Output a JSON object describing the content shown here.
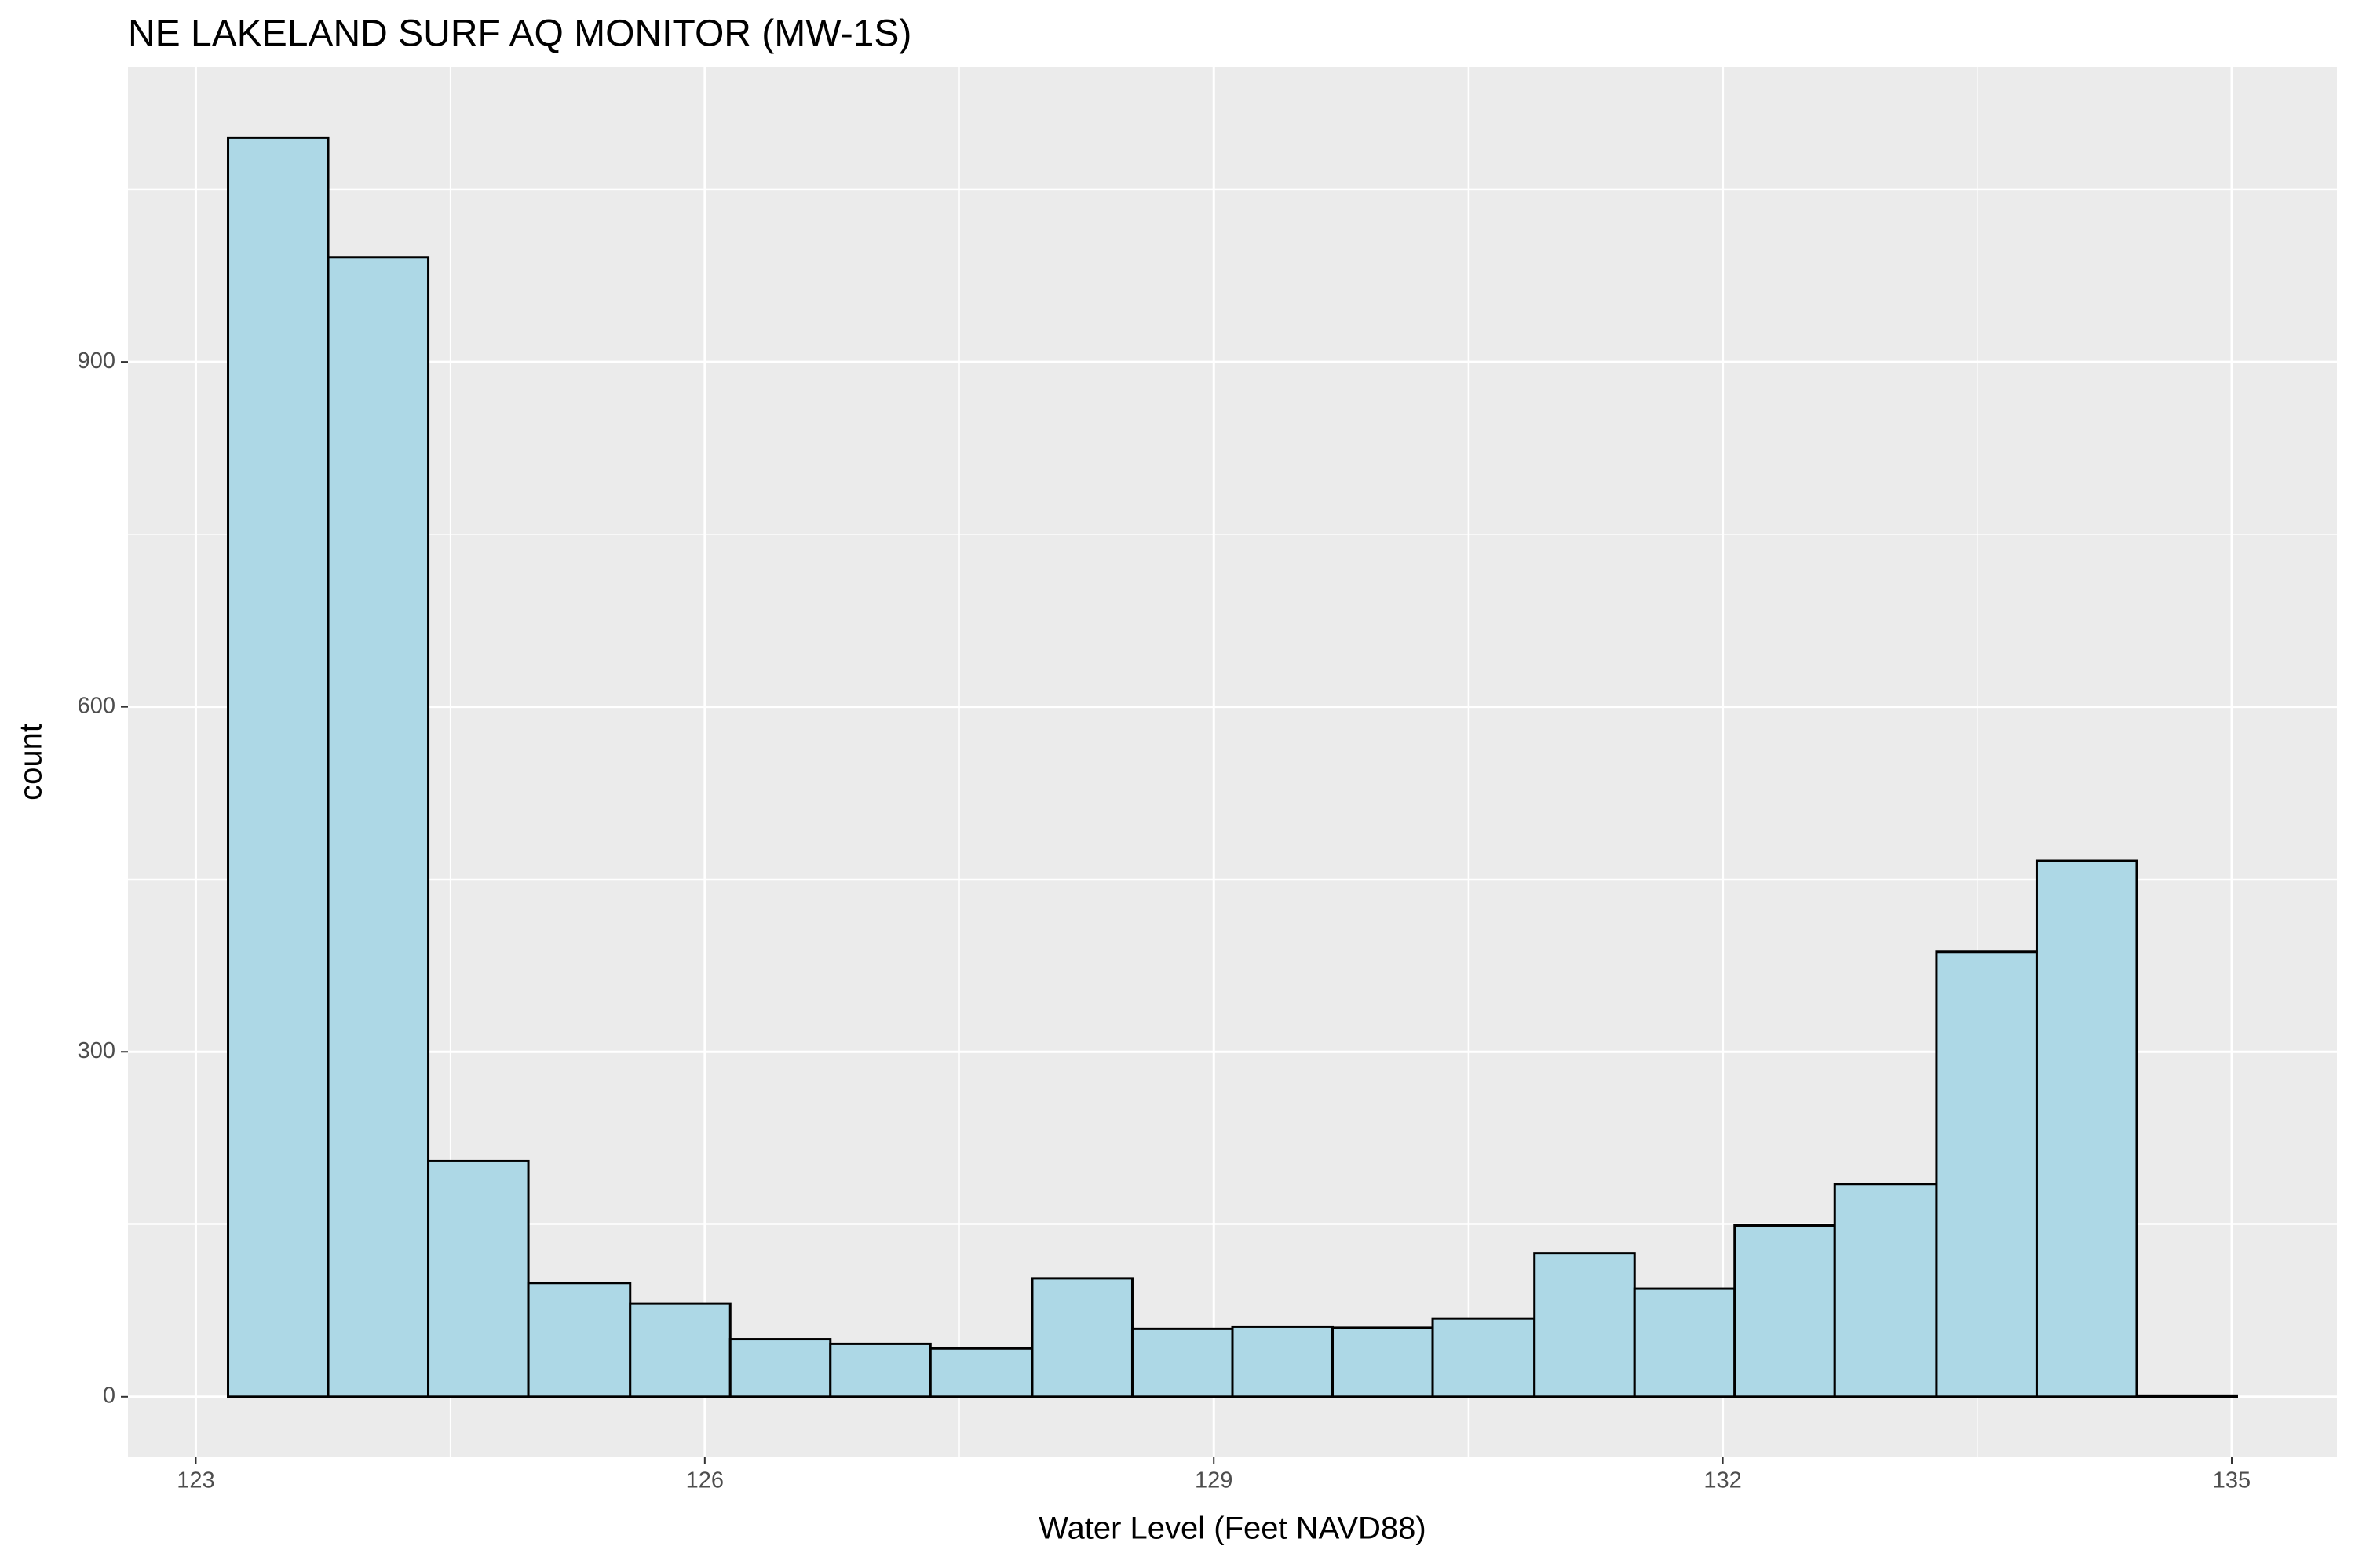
{
  "chart_data": {
    "type": "histogram",
    "title": "NE LAKELAND SURF AQ MONITOR (MW-1S)",
    "x_label": "Water Level (Feet NAVD88)",
    "y_label": "count",
    "bins": [
      123.19,
      123.78,
      124.37,
      124.96,
      125.56,
      126.15,
      126.74,
      127.33,
      127.93,
      128.52,
      129.11,
      129.7,
      130.29,
      130.89,
      131.48,
      132.07,
      132.66,
      133.26,
      133.85,
      134.44,
      135.03
    ],
    "values": [
      1095,
      991,
      205,
      99,
      81,
      50,
      46,
      42,
      103,
      59,
      61,
      60,
      68,
      125,
      94,
      149,
      185,
      387,
      466,
      1
    ],
    "color": "#add8e6",
    "edge_color": "#000000",
    "xlim": [
      122.6,
      135.62
    ],
    "xticks": [
      123,
      126,
      129,
      132,
      135
    ],
    "ylim": [
      -52,
      1156
    ],
    "yticks": [
      0,
      300,
      600,
      900
    ],
    "grid": true
  }
}
